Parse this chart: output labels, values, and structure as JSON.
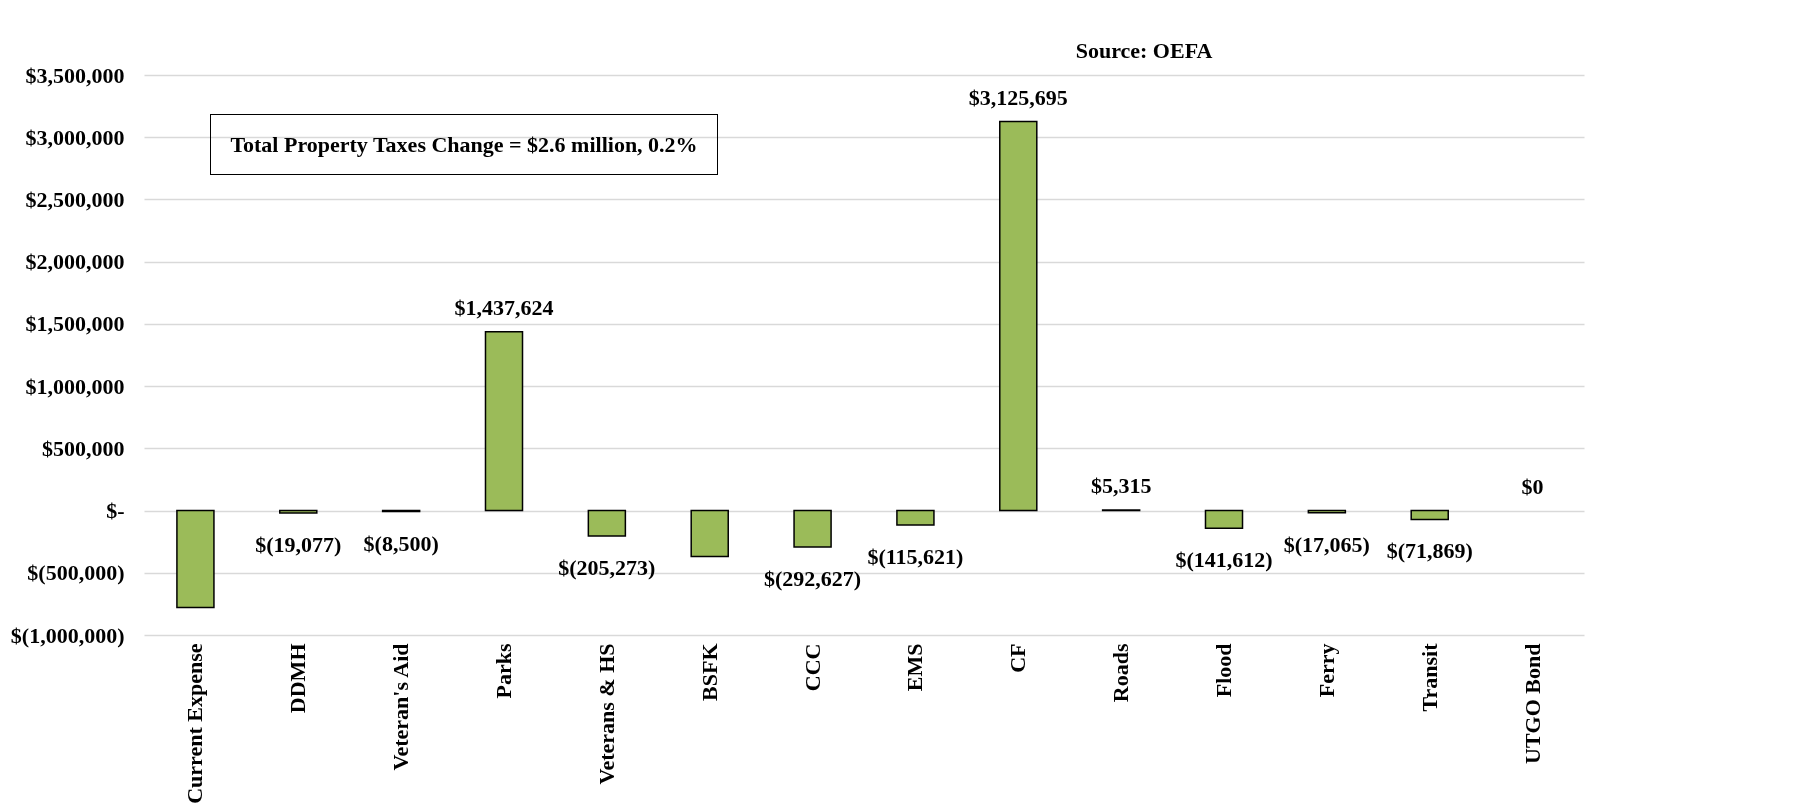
{
  "chart_data": {
    "type": "bar",
    "annotations": [
      "Source: OEFA",
      "Total Property Taxes Change = $2.6 million, 0.2%"
    ],
    "categories": [
      "Current Expense",
      "DDMH",
      "Veteran's Aid",
      "Parks",
      "Veterans & HS",
      "BSFK",
      "CCC",
      "EMS",
      "CF",
      "Roads",
      "Flood",
      "Ferry",
      "Transit",
      "UTGO Bond"
    ],
    "values": [
      -780000,
      -19077,
      -8500,
      1437624,
      -205273,
      -370000,
      -292627,
      -115621,
      3125695,
      5315,
      -141612,
      -17065,
      -71869,
      0
    ],
    "value_labels": [
      null,
      "$(19,077)",
      "$(8,500)",
      "$1,437,624",
      "$(205,273)",
      null,
      "$(292,627)",
      "$(115,621)",
      "$3,125,695",
      "$5,315",
      "$(141,612)",
      "$(17,065)",
      "$(71,869)",
      "$0"
    ],
    "color": "#9bbb59",
    "ylim": [
      -1000000,
      3500000
    ],
    "yticks": [
      {
        "value": -1000000,
        "label": "$(1,000,000)"
      },
      {
        "value": -500000,
        "label": "$(500,000)"
      },
      {
        "value": 0,
        "label": "$-"
      },
      {
        "value": 500000,
        "label": "$500,000"
      },
      {
        "value": 1000000,
        "label": "$1,000,000"
      },
      {
        "value": 1500000,
        "label": "$1,500,000"
      },
      {
        "value": 2000000,
        "label": "$2,000,000"
      },
      {
        "value": 2500000,
        "label": "$2,500,000"
      },
      {
        "value": 3000000,
        "label": "$3,000,000"
      },
      {
        "value": 3500000,
        "label": "$3,500,000"
      }
    ],
    "grid": "y"
  }
}
